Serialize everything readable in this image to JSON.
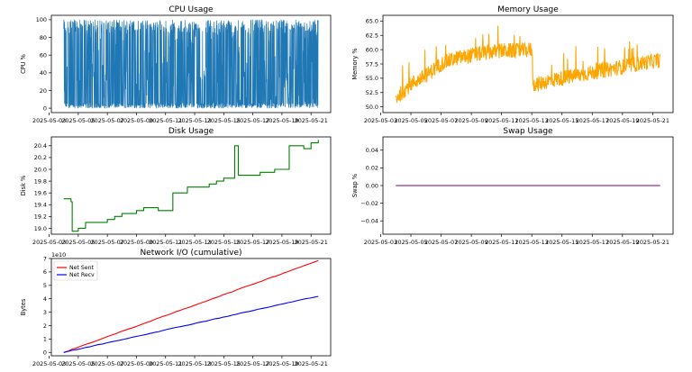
{
  "figure": {
    "chart_data": [
      {
        "type": "line",
        "title": "CPU Usage",
        "xlabel": "",
        "ylabel": "CPU %",
        "x_range": [
          "2025-05-03T12:00",
          "2025-05-22T00:00"
        ],
        "ylim": [
          -5,
          105
        ],
        "yticks": [
          0,
          20,
          40,
          60,
          80,
          100
        ],
        "xticks": [
          "2025-05-03",
          "2025-05-05",
          "2025-05-07",
          "2025-05-09",
          "2025-05-11",
          "2025-05-13",
          "2025-05-15",
          "2025-05-17",
          "2025-05-19",
          "2025-05-21"
        ],
        "grid": false,
        "series": [
          {
            "color": "#1f77b4",
            "description_values": {
              "min": 0,
              "max": 100,
              "typical_low": 0,
              "typical_high": 100
            },
            "x_start": "2025-05-04T00:00",
            "x_end": "2025-05-21T12:00"
          }
        ]
      },
      {
        "type": "line",
        "title": "Memory Usage",
        "xlabel": "",
        "ylabel": "Memory %",
        "ylim": [
          49,
          66
        ],
        "yticks": [
          50.0,
          52.5,
          55.0,
          57.5,
          60.0,
          62.5,
          65.0
        ],
        "ytick_labels": [
          "50.0",
          "52.5",
          "55.0",
          "57.5",
          "60.0",
          "62.5",
          "65.0"
        ],
        "xticks": [
          "2025-05-03",
          "2025-05-05",
          "2025-05-07",
          "2025-05-09",
          "2025-05-11",
          "2025-05-13",
          "2025-05-15",
          "2025-05-17",
          "2025-05-19",
          "2025-05-21"
        ],
        "grid": false,
        "series": [
          {
            "color": "#ffa500",
            "x": [
              "2025-05-04",
              "2025-05-05",
              "2025-05-06",
              "2025-05-07",
              "2025-05-08",
              "2025-05-09",
              "2025-05-10",
              "2025-05-11",
              "2025-05-12",
              "2025-05-13",
              "2025-05-13T12:00",
              "2025-05-14",
              "2025-05-15",
              "2025-05-16",
              "2025-05-17",
              "2025-05-18",
              "2025-05-19",
              "2025-05-20",
              "2025-05-21",
              "2025-05-21T12:00"
            ],
            "y": [
              51.5,
              54.0,
              55.5,
              57.5,
              58.5,
              59.0,
              59.5,
              59.8,
              59.8,
              60.0,
              54.0,
              54.5,
              55.0,
              55.5,
              56.0,
              56.5,
              57.0,
              57.5,
              58.0,
              58.2
            ]
          }
        ]
      },
      {
        "type": "line",
        "title": "Disk Usage",
        "xlabel": "",
        "ylabel": "Disk %",
        "ylim": [
          18.9,
          20.55
        ],
        "yticks": [
          19.0,
          19.2,
          19.4,
          19.6,
          19.8,
          20.0,
          20.2,
          20.4
        ],
        "ytick_labels": [
          "19.0",
          "19.2",
          "19.4",
          "19.6",
          "19.8",
          "20.0",
          "20.2",
          "20.4"
        ],
        "xticks": [
          "2025-05-03",
          "2025-05-05",
          "2025-05-07",
          "2025-05-09",
          "2025-05-11",
          "2025-05-13",
          "2025-05-15",
          "2025-05-17",
          "2025-05-19",
          "2025-05-21"
        ],
        "grid": false,
        "series": [
          {
            "color": "#008000",
            "x": [
              "2025-05-04",
              "2025-05-04T12:00",
              "2025-05-04T14:00",
              "2025-05-05",
              "2025-05-05T12:00",
              "2025-05-06",
              "2025-05-07",
              "2025-05-07T12:00",
              "2025-05-08",
              "2025-05-08T12:00",
              "2025-05-09",
              "2025-05-09T12:00",
              "2025-05-10",
              "2025-05-10T12:00",
              "2025-05-11",
              "2025-05-11T12:00",
              "2025-05-12",
              "2025-05-12T12:00",
              "2025-05-13",
              "2025-05-13T12:00",
              "2025-05-14",
              "2025-05-14T12:00",
              "2025-05-15",
              "2025-05-15T12:00",
              "2025-05-15T18:00",
              "2025-05-16",
              "2025-05-16T12:00",
              "2025-05-17",
              "2025-05-17T12:00",
              "2025-05-18",
              "2025-05-18T12:00",
              "2025-05-19",
              "2025-05-19T12:00",
              "2025-05-20",
              "2025-05-20T12:00",
              "2025-05-21",
              "2025-05-21T12:00"
            ],
            "y": [
              19.5,
              19.45,
              18.95,
              19.0,
              19.1,
              19.1,
              19.15,
              19.2,
              19.25,
              19.25,
              19.3,
              19.35,
              19.35,
              19.3,
              19.3,
              19.6,
              19.6,
              19.7,
              19.7,
              19.7,
              19.75,
              19.8,
              19.85,
              19.85,
              20.4,
              19.9,
              19.9,
              19.9,
              19.95,
              19.95,
              20.0,
              20.0,
              20.4,
              20.4,
              20.35,
              20.45,
              20.5
            ]
          }
        ]
      },
      {
        "type": "line",
        "title": "Swap Usage",
        "xlabel": "",
        "ylabel": "Swap %",
        "ylim": [
          -0.055,
          0.055
        ],
        "yticks": [
          -0.04,
          -0.02,
          0.0,
          0.02,
          0.04
        ],
        "ytick_labels": [
          "−0.04",
          "−0.02",
          "0.00",
          "0.02",
          "0.04"
        ],
        "xticks": [
          "2025-05-03",
          "2025-05-05",
          "2025-05-07",
          "2025-05-09",
          "2025-05-11",
          "2025-05-13",
          "2025-05-15",
          "2025-05-17",
          "2025-05-19",
          "2025-05-21"
        ],
        "grid": false,
        "series": [
          {
            "color": "#800080",
            "x": [
              "2025-05-04",
              "2025-05-21T12:00"
            ],
            "y": [
              0.0,
              0.0
            ]
          }
        ]
      },
      {
        "type": "line",
        "title": "Network I/O (cumulative)",
        "xlabel": "",
        "ylabel": "Bytes",
        "offset_text": "1e10",
        "ylim": [
          -0.25,
          7.0
        ],
        "yticks": [
          0,
          1,
          2,
          3,
          4,
          5,
          6,
          7
        ],
        "ytick_labels": [
          "0",
          "1",
          "2",
          "3",
          "4",
          "5",
          "6",
          "7"
        ],
        "xticks": [
          "2025-05-03",
          "2025-05-05",
          "2025-05-07",
          "2025-05-09",
          "2025-05-11",
          "2025-05-13",
          "2025-05-15",
          "2025-05-17",
          "2025-05-19",
          "2025-05-21"
        ],
        "grid": false,
        "legend": "upper left",
        "series": [
          {
            "name": "Net Sent",
            "color": "#ff0000",
            "x": [
              "2025-05-04",
              "2025-05-21T12:00"
            ],
            "y": [
              0.0,
              6.85
            ]
          },
          {
            "name": "Net Recv",
            "color": "#0000ff",
            "x": [
              "2025-05-04",
              "2025-05-21T12:00"
            ],
            "y": [
              0.0,
              4.2
            ]
          }
        ]
      }
    ]
  }
}
